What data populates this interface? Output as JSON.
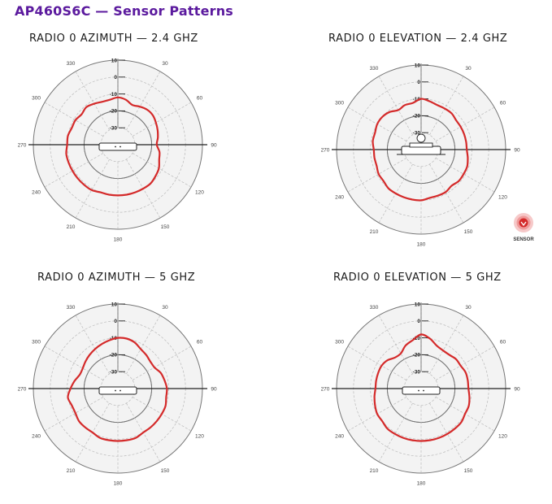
{
  "page_title": "AP460S6C — Sensor Patterns",
  "angle_labels": [
    "330",
    "30",
    "300",
    "60",
    "270",
    "90",
    "240",
    "120",
    "210",
    "150",
    "180"
  ],
  "ring_labels": [
    "10",
    "0",
    "-10",
    "-20",
    "-30"
  ],
  "sensor_label": "SENSOR",
  "colors": {
    "title": "#5b1a9e",
    "pattern": "#d42a2a",
    "grid": "#9a9a9a",
    "disc": "#f3f3f3"
  },
  "panels": [
    {
      "id": "az24",
      "title": "RADIO 0 AZIMUTH — 2.4 GHZ",
      "device": "top-view",
      "pattern_db": [
        -12,
        -13,
        -15,
        -14,
        -13,
        -13,
        -14,
        -15,
        -16,
        -17,
        -15,
        -14,
        -12,
        -11,
        -10,
        -10,
        -10,
        -10,
        -10,
        -10,
        -10,
        -9,
        -9,
        -9,
        -9,
        -9,
        -9,
        -10,
        -10,
        -11,
        -11,
        -12,
        -11,
        -12,
        -13,
        -13
      ]
    },
    {
      "id": "el24",
      "title": "RADIO 0 ELEVATION — 2.4 GHZ",
      "device": "side-view",
      "sensor": true,
      "pattern_db": [
        -10,
        -11,
        -12,
        -12,
        -12,
        -13,
        -13,
        -13,
        -13,
        -13,
        -12,
        -11,
        -11,
        -11,
        -12,
        -11,
        -11,
        -11,
        -10,
        -10,
        -10,
        -10,
        -10,
        -11,
        -11,
        -12,
        -12,
        -12,
        -11,
        -11,
        -10,
        -10,
        -11,
        -13,
        -12,
        -12
      ]
    },
    {
      "id": "az5",
      "title": "RADIO 0 AZIMUTH — 5 GHZ",
      "device": "top-view",
      "pattern_db": [
        -10,
        -10,
        -11,
        -13,
        -14,
        -15,
        -15,
        -13,
        -12,
        -11,
        -11,
        -10,
        -10,
        -10,
        -10,
        -10,
        -9,
        -9,
        -9,
        -9,
        -9,
        -10,
        -10,
        -10,
        -11,
        -11,
        -10,
        -12,
        -14,
        -16,
        -16,
        -15,
        -14,
        -13,
        -12,
        -11
      ]
    },
    {
      "id": "el5",
      "title": "RADIO 0 ELEVATION — 5 GHZ",
      "device": "top-view",
      "pattern_db": [
        -8,
        -10,
        -13,
        -14,
        -14,
        -13,
        -13,
        -12,
        -12,
        -12,
        -11,
        -10,
        -10,
        -9,
        -9,
        -9,
        -9,
        -9,
        -9,
        -9,
        -9,
        -9,
        -9,
        -10,
        -10,
        -11,
        -12,
        -13,
        -13,
        -13,
        -13,
        -14,
        -16,
        -16,
        -13,
        -11
      ]
    }
  ]
}
